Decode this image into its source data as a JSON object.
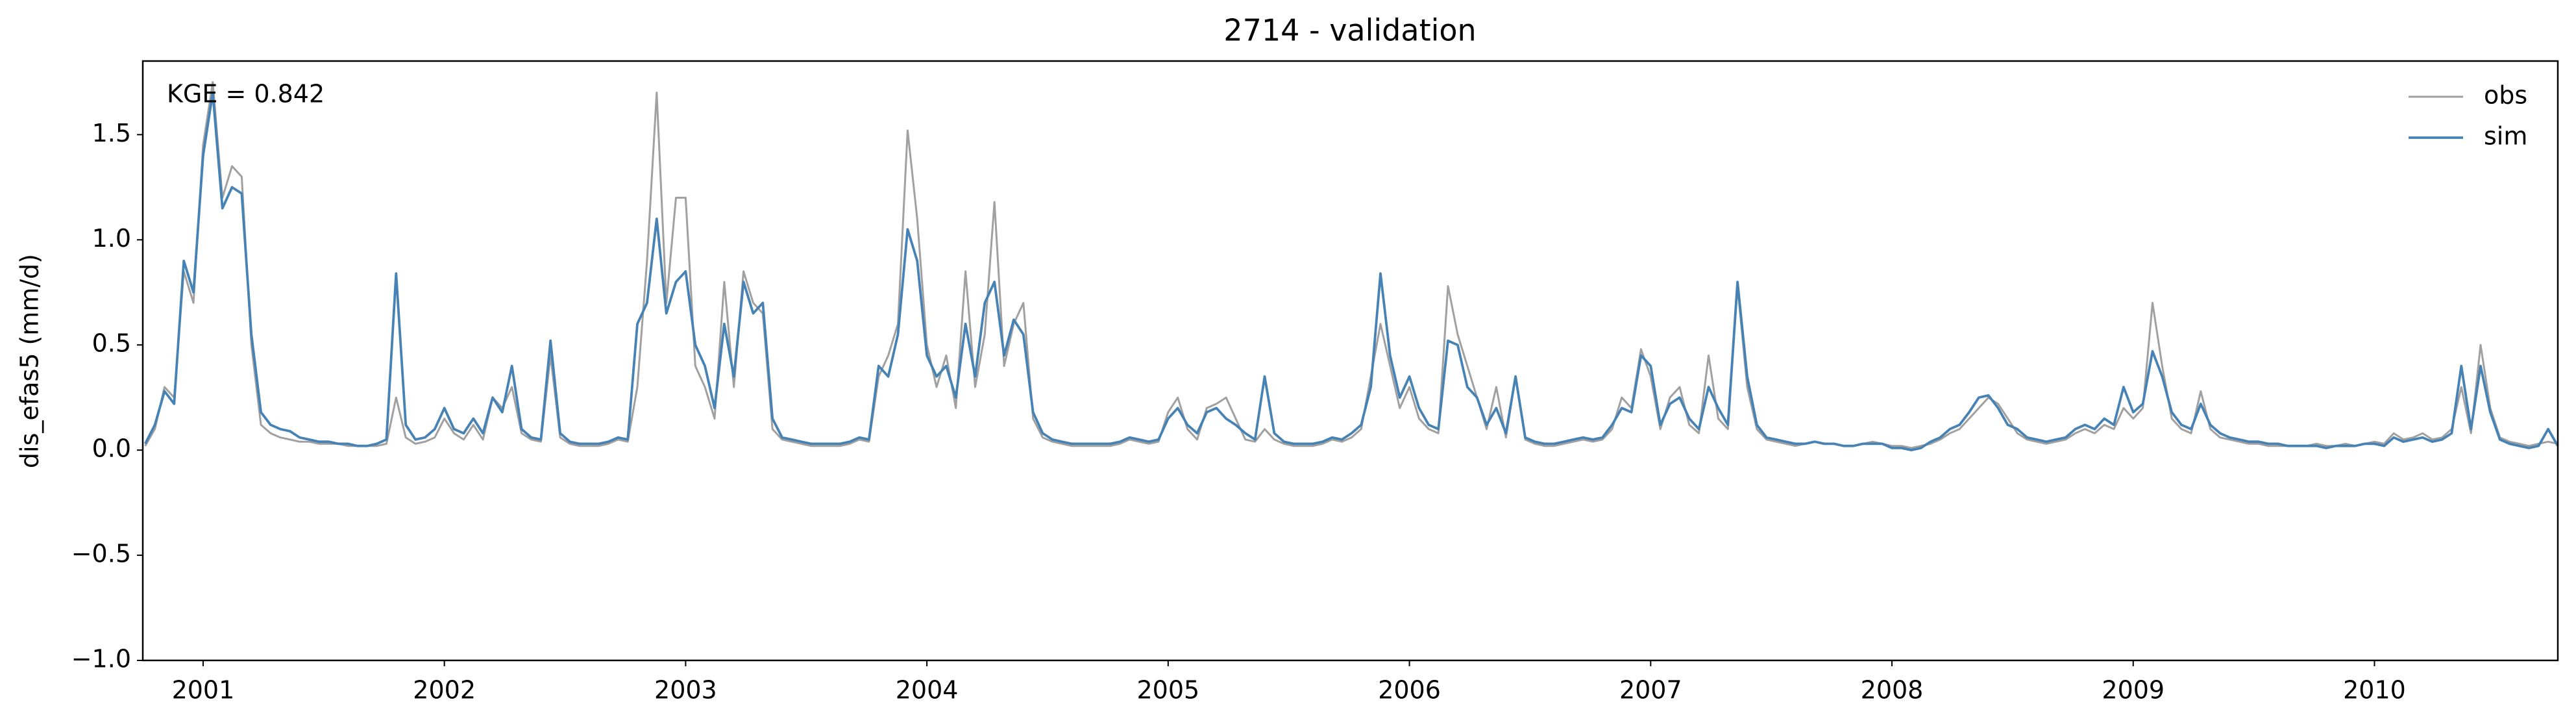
{
  "chart_data": {
    "type": "line",
    "title": "2714 - validation",
    "y_label": "dis_efas5 (mm/d)",
    "annotation": "KGE = 0.842",
    "legend": "upper right",
    "grid": false,
    "xlim": [
      2000.75,
      2010.76
    ],
    "xticks": [
      2001,
      2002,
      2003,
      2004,
      2005,
      2006,
      2007,
      2008,
      2009,
      2010
    ],
    "ylim": [
      -1,
      1.85
    ],
    "yticks": [
      {
        "value": -1,
        "label": "−1.0"
      },
      {
        "value": -0.5,
        "label": "−0.5"
      },
      {
        "value": 0,
        "label": "0.0"
      },
      {
        "value": 0.5,
        "label": "0.5"
      },
      {
        "value": 1,
        "label": "1.0"
      },
      {
        "value": 1.5,
        "label": "1.5"
      }
    ],
    "x": [
      2000.76,
      2000.8,
      2000.84,
      2000.88,
      2000.92,
      2000.96,
      2001.0,
      2001.04,
      2001.08,
      2001.12,
      2001.16,
      2001.2,
      2001.24,
      2001.28,
      2001.32,
      2001.36,
      2001.4,
      2001.44,
      2001.48,
      2001.52,
      2001.56,
      2001.6,
      2001.64,
      2001.68,
      2001.72,
      2001.76,
      2001.8,
      2001.84,
      2001.88,
      2001.92,
      2001.96,
      2002.0,
      2002.04,
      2002.08,
      2002.12,
      2002.16,
      2002.2,
      2002.24,
      2002.28,
      2002.32,
      2002.36,
      2002.4,
      2002.44,
      2002.48,
      2002.52,
      2002.56,
      2002.6,
      2002.64,
      2002.68,
      2002.72,
      2002.76,
      2002.8,
      2002.84,
      2002.88,
      2002.92,
      2002.96,
      2003.0,
      2003.04,
      2003.08,
      2003.12,
      2003.16,
      2003.2,
      2003.24,
      2003.28,
      2003.32,
      2003.36,
      2003.4,
      2003.44,
      2003.48,
      2003.52,
      2003.56,
      2003.6,
      2003.64,
      2003.68,
      2003.72,
      2003.76,
      2003.8,
      2003.84,
      2003.88,
      2003.92,
      2003.96,
      2004.0,
      2004.04,
      2004.08,
      2004.12,
      2004.16,
      2004.2,
      2004.24,
      2004.28,
      2004.32,
      2004.36,
      2004.4,
      2004.44,
      2004.48,
      2004.52,
      2004.56,
      2004.6,
      2004.64,
      2004.68,
      2004.72,
      2004.76,
      2004.8,
      2004.84,
      2004.88,
      2004.92,
      2004.96,
      2005.0,
      2005.04,
      2005.08,
      2005.12,
      2005.16,
      2005.2,
      2005.24,
      2005.28,
      2005.32,
      2005.36,
      2005.4,
      2005.44,
      2005.48,
      2005.52,
      2005.56,
      2005.6,
      2005.64,
      2005.68,
      2005.72,
      2005.76,
      2005.8,
      2005.84,
      2005.88,
      2005.92,
      2005.96,
      2006.0,
      2006.04,
      2006.08,
      2006.12,
      2006.16,
      2006.2,
      2006.24,
      2006.28,
      2006.32,
      2006.36,
      2006.4,
      2006.44,
      2006.48,
      2006.52,
      2006.56,
      2006.6,
      2006.64,
      2006.68,
      2006.72,
      2006.76,
      2006.8,
      2006.84,
      2006.88,
      2006.92,
      2006.96,
      2007.0,
      2007.04,
      2007.08,
      2007.12,
      2007.16,
      2007.2,
      2007.24,
      2007.28,
      2007.32,
      2007.36,
      2007.4,
      2007.44,
      2007.48,
      2007.52,
      2007.56,
      2007.6,
      2007.64,
      2007.68,
      2007.72,
      2007.76,
      2007.8,
      2007.84,
      2007.88,
      2007.92,
      2007.96,
      2008.0,
      2008.04,
      2008.08,
      2008.12,
      2008.16,
      2008.2,
      2008.24,
      2008.28,
      2008.32,
      2008.36,
      2008.4,
      2008.44,
      2008.48,
      2008.52,
      2008.56,
      2008.6,
      2008.64,
      2008.68,
      2008.72,
      2008.76,
      2008.8,
      2008.84,
      2008.88,
      2008.92,
      2008.96,
      2009.0,
      2009.04,
      2009.08,
      2009.12,
      2009.16,
      2009.2,
      2009.24,
      2009.28,
      2009.32,
      2009.36,
      2009.4,
      2009.44,
      2009.48,
      2009.52,
      2009.56,
      2009.6,
      2009.64,
      2009.68,
      2009.72,
      2009.76,
      2009.8,
      2009.84,
      2009.88,
      2009.92,
      2009.96,
      2010.0,
      2010.04,
      2010.08,
      2010.12,
      2010.16,
      2010.2,
      2010.24,
      2010.28,
      2010.32,
      2010.36,
      2010.4,
      2010.44,
      2010.48,
      2010.52,
      2010.56,
      2010.6,
      2010.64,
      2010.68,
      2010.72,
      2010.76
    ],
    "series": [
      {
        "name": "obs",
        "color": "#a0a0a0",
        "values": [
          0.02,
          0.1,
          0.3,
          0.25,
          0.85,
          0.7,
          1.45,
          1.75,
          1.2,
          1.35,
          1.3,
          0.5,
          0.12,
          0.08,
          0.06,
          0.05,
          0.04,
          0.04,
          0.03,
          0.03,
          0.03,
          0.02,
          0.02,
          0.02,
          0.02,
          0.03,
          0.25,
          0.06,
          0.03,
          0.04,
          0.06,
          0.15,
          0.08,
          0.05,
          0.12,
          0.05,
          0.25,
          0.2,
          0.3,
          0.08,
          0.05,
          0.04,
          0.45,
          0.06,
          0.03,
          0.02,
          0.02,
          0.02,
          0.03,
          0.05,
          0.04,
          0.3,
          0.9,
          1.7,
          0.7,
          1.2,
          1.2,
          0.4,
          0.3,
          0.15,
          0.8,
          0.3,
          0.85,
          0.7,
          0.65,
          0.1,
          0.05,
          0.04,
          0.03,
          0.02,
          0.02,
          0.02,
          0.02,
          0.03,
          0.05,
          0.04,
          0.35,
          0.45,
          0.6,
          1.52,
          1.1,
          0.5,
          0.3,
          0.45,
          0.2,
          0.85,
          0.3,
          0.55,
          1.18,
          0.4,
          0.6,
          0.7,
          0.15,
          0.06,
          0.04,
          0.03,
          0.02,
          0.02,
          0.02,
          0.02,
          0.02,
          0.03,
          0.05,
          0.04,
          0.03,
          0.04,
          0.18,
          0.25,
          0.1,
          0.05,
          0.2,
          0.22,
          0.25,
          0.15,
          0.05,
          0.04,
          0.1,
          0.05,
          0.03,
          0.02,
          0.02,
          0.02,
          0.03,
          0.05,
          0.04,
          0.06,
          0.1,
          0.35,
          0.6,
          0.4,
          0.2,
          0.3,
          0.15,
          0.1,
          0.08,
          0.78,
          0.55,
          0.4,
          0.25,
          0.1,
          0.3,
          0.06,
          0.35,
          0.05,
          0.03,
          0.02,
          0.02,
          0.03,
          0.04,
          0.05,
          0.04,
          0.05,
          0.1,
          0.25,
          0.2,
          0.48,
          0.35,
          0.1,
          0.25,
          0.3,
          0.12,
          0.08,
          0.45,
          0.15,
          0.1,
          0.78,
          0.3,
          0.1,
          0.05,
          0.04,
          0.03,
          0.02,
          0.03,
          0.04,
          0.03,
          0.03,
          0.02,
          0.02,
          0.03,
          0.04,
          0.03,
          0.02,
          0.02,
          0.01,
          0.02,
          0.03,
          0.05,
          0.08,
          0.1,
          0.15,
          0.2,
          0.25,
          0.22,
          0.15,
          0.08,
          0.05,
          0.04,
          0.03,
          0.04,
          0.05,
          0.08,
          0.1,
          0.08,
          0.12,
          0.1,
          0.2,
          0.15,
          0.2,
          0.7,
          0.4,
          0.15,
          0.1,
          0.08,
          0.28,
          0.1,
          0.06,
          0.05,
          0.04,
          0.03,
          0.03,
          0.02,
          0.02,
          0.02,
          0.02,
          0.02,
          0.03,
          0.02,
          0.02,
          0.03,
          0.02,
          0.03,
          0.04,
          0.03,
          0.08,
          0.05,
          0.06,
          0.08,
          0.05,
          0.06,
          0.1,
          0.3,
          0.08,
          0.5,
          0.2,
          0.06,
          0.04,
          0.03,
          0.02,
          0.03,
          0.04,
          0.03
        ]
      },
      {
        "name": "sim",
        "color": "#4682b4",
        "values": [
          0.03,
          0.12,
          0.28,
          0.22,
          0.9,
          0.75,
          1.4,
          1.7,
          1.15,
          1.25,
          1.22,
          0.55,
          0.18,
          0.12,
          0.1,
          0.09,
          0.06,
          0.05,
          0.04,
          0.04,
          0.03,
          0.03,
          0.02,
          0.02,
          0.03,
          0.05,
          0.84,
          0.12,
          0.05,
          0.06,
          0.1,
          0.2,
          0.1,
          0.08,
          0.15,
          0.08,
          0.25,
          0.18,
          0.4,
          0.1,
          0.06,
          0.05,
          0.52,
          0.08,
          0.04,
          0.03,
          0.03,
          0.03,
          0.04,
          0.06,
          0.05,
          0.6,
          0.7,
          1.1,
          0.65,
          0.8,
          0.85,
          0.5,
          0.4,
          0.2,
          0.6,
          0.35,
          0.8,
          0.65,
          0.7,
          0.15,
          0.06,
          0.05,
          0.04,
          0.03,
          0.03,
          0.03,
          0.03,
          0.04,
          0.06,
          0.05,
          0.4,
          0.35,
          0.55,
          1.05,
          0.9,
          0.45,
          0.35,
          0.4,
          0.25,
          0.6,
          0.35,
          0.7,
          0.8,
          0.45,
          0.62,
          0.55,
          0.18,
          0.08,
          0.05,
          0.04,
          0.03,
          0.03,
          0.03,
          0.03,
          0.03,
          0.04,
          0.06,
          0.05,
          0.04,
          0.05,
          0.15,
          0.2,
          0.12,
          0.08,
          0.18,
          0.2,
          0.15,
          0.12,
          0.08,
          0.05,
          0.35,
          0.08,
          0.04,
          0.03,
          0.03,
          0.03,
          0.04,
          0.06,
          0.05,
          0.08,
          0.12,
          0.3,
          0.84,
          0.45,
          0.25,
          0.35,
          0.2,
          0.12,
          0.1,
          0.52,
          0.5,
          0.3,
          0.25,
          0.12,
          0.2,
          0.08,
          0.35,
          0.06,
          0.04,
          0.03,
          0.03,
          0.04,
          0.05,
          0.06,
          0.05,
          0.06,
          0.12,
          0.2,
          0.18,
          0.45,
          0.4,
          0.12,
          0.22,
          0.25,
          0.15,
          0.1,
          0.3,
          0.2,
          0.12,
          0.8,
          0.35,
          0.12,
          0.06,
          0.05,
          0.04,
          0.03,
          0.03,
          0.04,
          0.03,
          0.03,
          0.02,
          0.02,
          0.03,
          0.03,
          0.03,
          0.01,
          0.01,
          0.0,
          0.01,
          0.04,
          0.06,
          0.1,
          0.12,
          0.18,
          0.25,
          0.26,
          0.2,
          0.12,
          0.1,
          0.06,
          0.05,
          0.04,
          0.05,
          0.06,
          0.1,
          0.12,
          0.1,
          0.15,
          0.12,
          0.3,
          0.18,
          0.22,
          0.47,
          0.35,
          0.18,
          0.12,
          0.1,
          0.22,
          0.12,
          0.08,
          0.06,
          0.05,
          0.04,
          0.04,
          0.03,
          0.03,
          0.02,
          0.02,
          0.02,
          0.02,
          0.01,
          0.02,
          0.02,
          0.02,
          0.03,
          0.03,
          0.02,
          0.06,
          0.04,
          0.05,
          0.06,
          0.04,
          0.05,
          0.08,
          0.4,
          0.1,
          0.4,
          0.18,
          0.05,
          0.03,
          0.02,
          0.01,
          0.02,
          0.1,
          0.02
        ]
      }
    ]
  }
}
